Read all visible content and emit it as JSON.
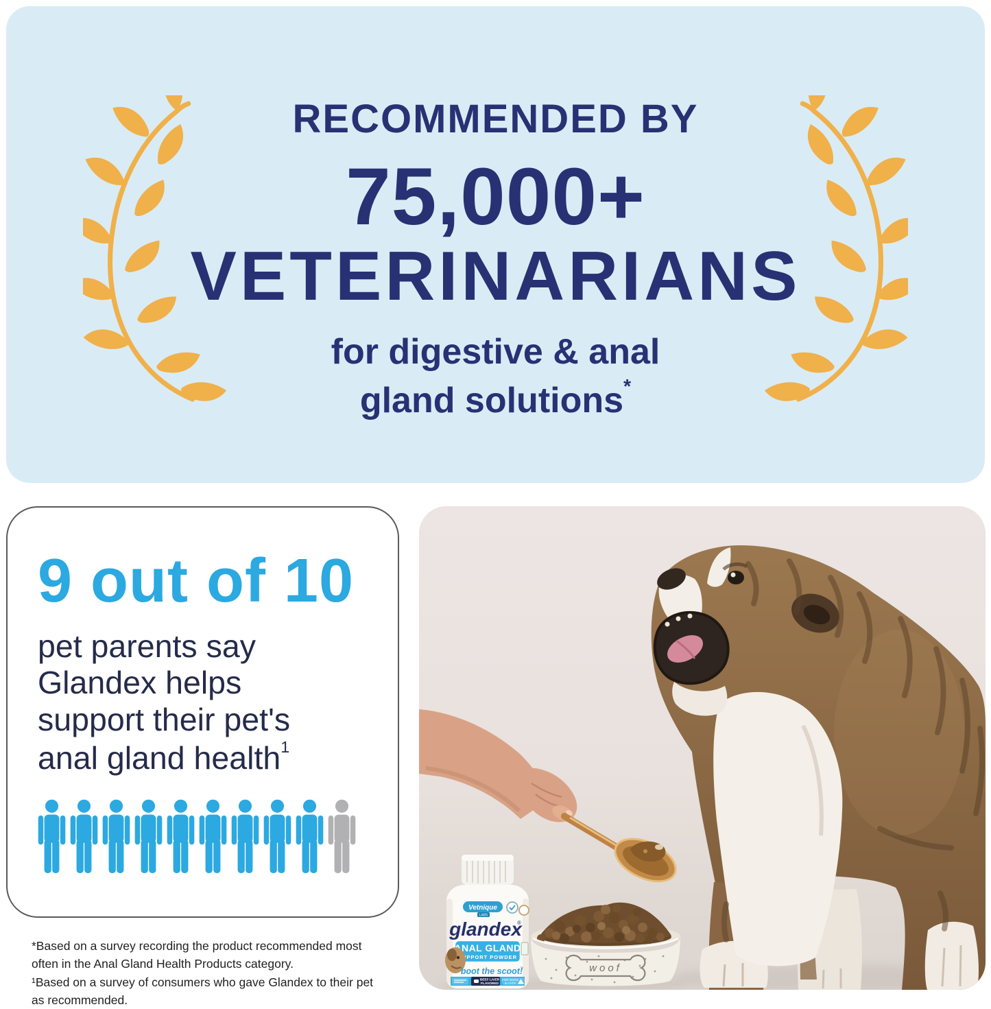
{
  "banner": {
    "line1": "RECOMMENDED BY",
    "line2": "75,000+",
    "line3": "VETERINARIANS",
    "subtitle_line1": "for digestive & anal",
    "subtitle_line2": "gland solutions",
    "asterisk": "*"
  },
  "stat_card": {
    "headline": "9 out of 10",
    "body_lines": [
      "pet parents say",
      "Glandex helps",
      "support their pet's",
      "anal gland health"
    ],
    "superscript": "1",
    "people": {
      "total": 10,
      "highlighted": 9
    }
  },
  "footnotes": [
    "*Based on a survey recording the product recommended most often in the Anal Gland Health Products category.",
    "¹Based on a survey of consumers who gave Glandex to their pet as recommended."
  ],
  "photo": {
    "bottle": {
      "brand": "Vetnique",
      "brand_suffix": "LABS",
      "product": "glandex",
      "registered": "®",
      "banner_line1": "ANAL GLAND",
      "banner_line2": "SUPPORT POWDER",
      "tagline": "boot the scoot!",
      "trademark": "™",
      "flavor_line1": "BEEF LIVER",
      "flavor_line2": "FLAVORED",
      "for_line1": "FOR DOGS",
      "for_line2": "& CATS"
    },
    "bowl_text": "woof"
  },
  "colors": {
    "banner_bg": "#d9ecf5",
    "navy": "#273173",
    "navy_text": "#252b49",
    "blue": "#2ba9e0",
    "gray": "#b1b1b3",
    "gold": "#f0b04a",
    "footnote": "#1f1f1f",
    "photo_bg": "#e9e1dd"
  }
}
